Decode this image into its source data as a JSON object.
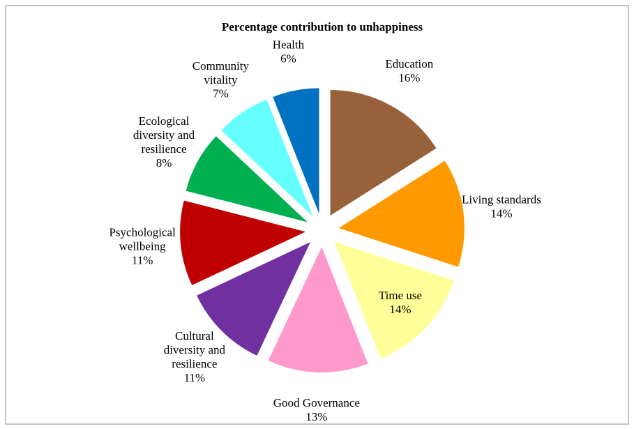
{
  "chart_data": {
    "type": "pie",
    "title": "Percentage contribution to unhappiness",
    "categories": [
      "Education",
      "Living standards",
      "Time use",
      "Good Governance",
      "Cultural diversity and resilience",
      "Psychological wellbeing",
      "Ecological diversity and resilience",
      "Community vitality",
      "Health"
    ],
    "values": [
      16,
      14,
      14,
      13,
      11,
      11,
      8,
      7,
      6
    ],
    "value_labels": [
      "16%",
      "14%",
      "14%",
      "13%",
      "11%",
      "11%",
      "8%",
      "7%",
      "6%"
    ],
    "colors": [
      "#97613a",
      "#ff9900",
      "#ffff99",
      "#ff99cc",
      "#7030a0",
      "#c00000",
      "#00b050",
      "#66ffff",
      "#0070c0"
    ],
    "exploded": true
  }
}
